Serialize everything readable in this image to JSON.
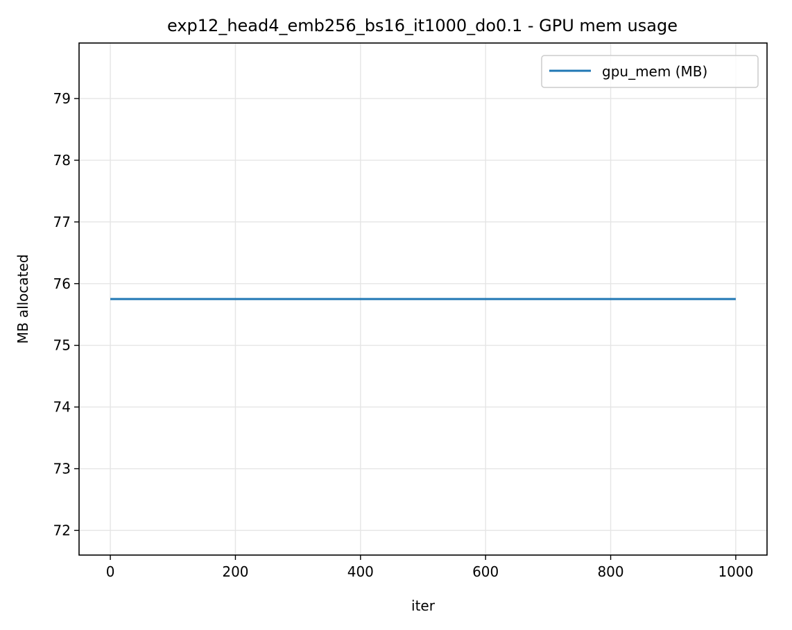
{
  "chart_data": {
    "type": "line",
    "title": "exp12_head4_emb256_bs16_it1000_do0.1 - GPU mem usage",
    "xlabel": "iter",
    "ylabel": "MB allocated",
    "xlim": [
      -50,
      1050
    ],
    "ylim": [
      71.6,
      79.9
    ],
    "xticks": [
      0,
      200,
      400,
      600,
      800,
      1000
    ],
    "yticks": [
      72,
      73,
      74,
      75,
      76,
      77,
      78,
      79
    ],
    "grid": true,
    "legend_position": "top-right",
    "series": [
      {
        "name": "gpu_mem (MB)",
        "color": "#1f77b4",
        "x": [
          0,
          1000
        ],
        "y": [
          75.75,
          75.75
        ]
      }
    ]
  }
}
